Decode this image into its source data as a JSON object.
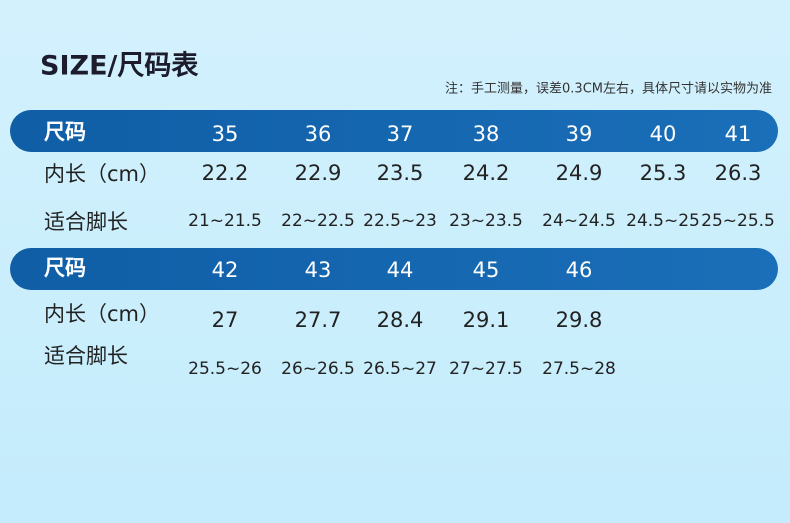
{
  "header": {
    "title": "SIZE/尺码表",
    "note": "注：手工测量，误差0.3CM左右，具体尺寸请以实物为准"
  },
  "tables": [
    {
      "header_label": "尺码",
      "sizes": [
        "35",
        "36",
        "37",
        "38",
        "39",
        "40",
        "41"
      ],
      "rows": [
        {
          "label": "内长（cm）",
          "cells": [
            "22.2",
            "22.9",
            "23.5",
            "24.2",
            "24.9",
            "25.3",
            "26.3"
          ]
        },
        {
          "label": "适合脚长",
          "cells": [
            "21~21.5",
            "22~22.5",
            "22.5~23",
            "23~23.5",
            "24~24.5",
            "24.5~25",
            "25~25.5"
          ]
        }
      ]
    },
    {
      "header_label": "尺码",
      "sizes": [
        "42",
        "43",
        "44",
        "45",
        "46"
      ],
      "rows": [
        {
          "label": "内长（cm）",
          "cells": [
            "27",
            "27.7",
            "28.4",
            "29.1",
            "29.8"
          ]
        },
        {
          "label": "适合脚长",
          "cells": [
            "25.5~26",
            "26~26.5",
            "26.5~27",
            "27~27.5",
            "27.5~28"
          ]
        }
      ]
    }
  ]
}
